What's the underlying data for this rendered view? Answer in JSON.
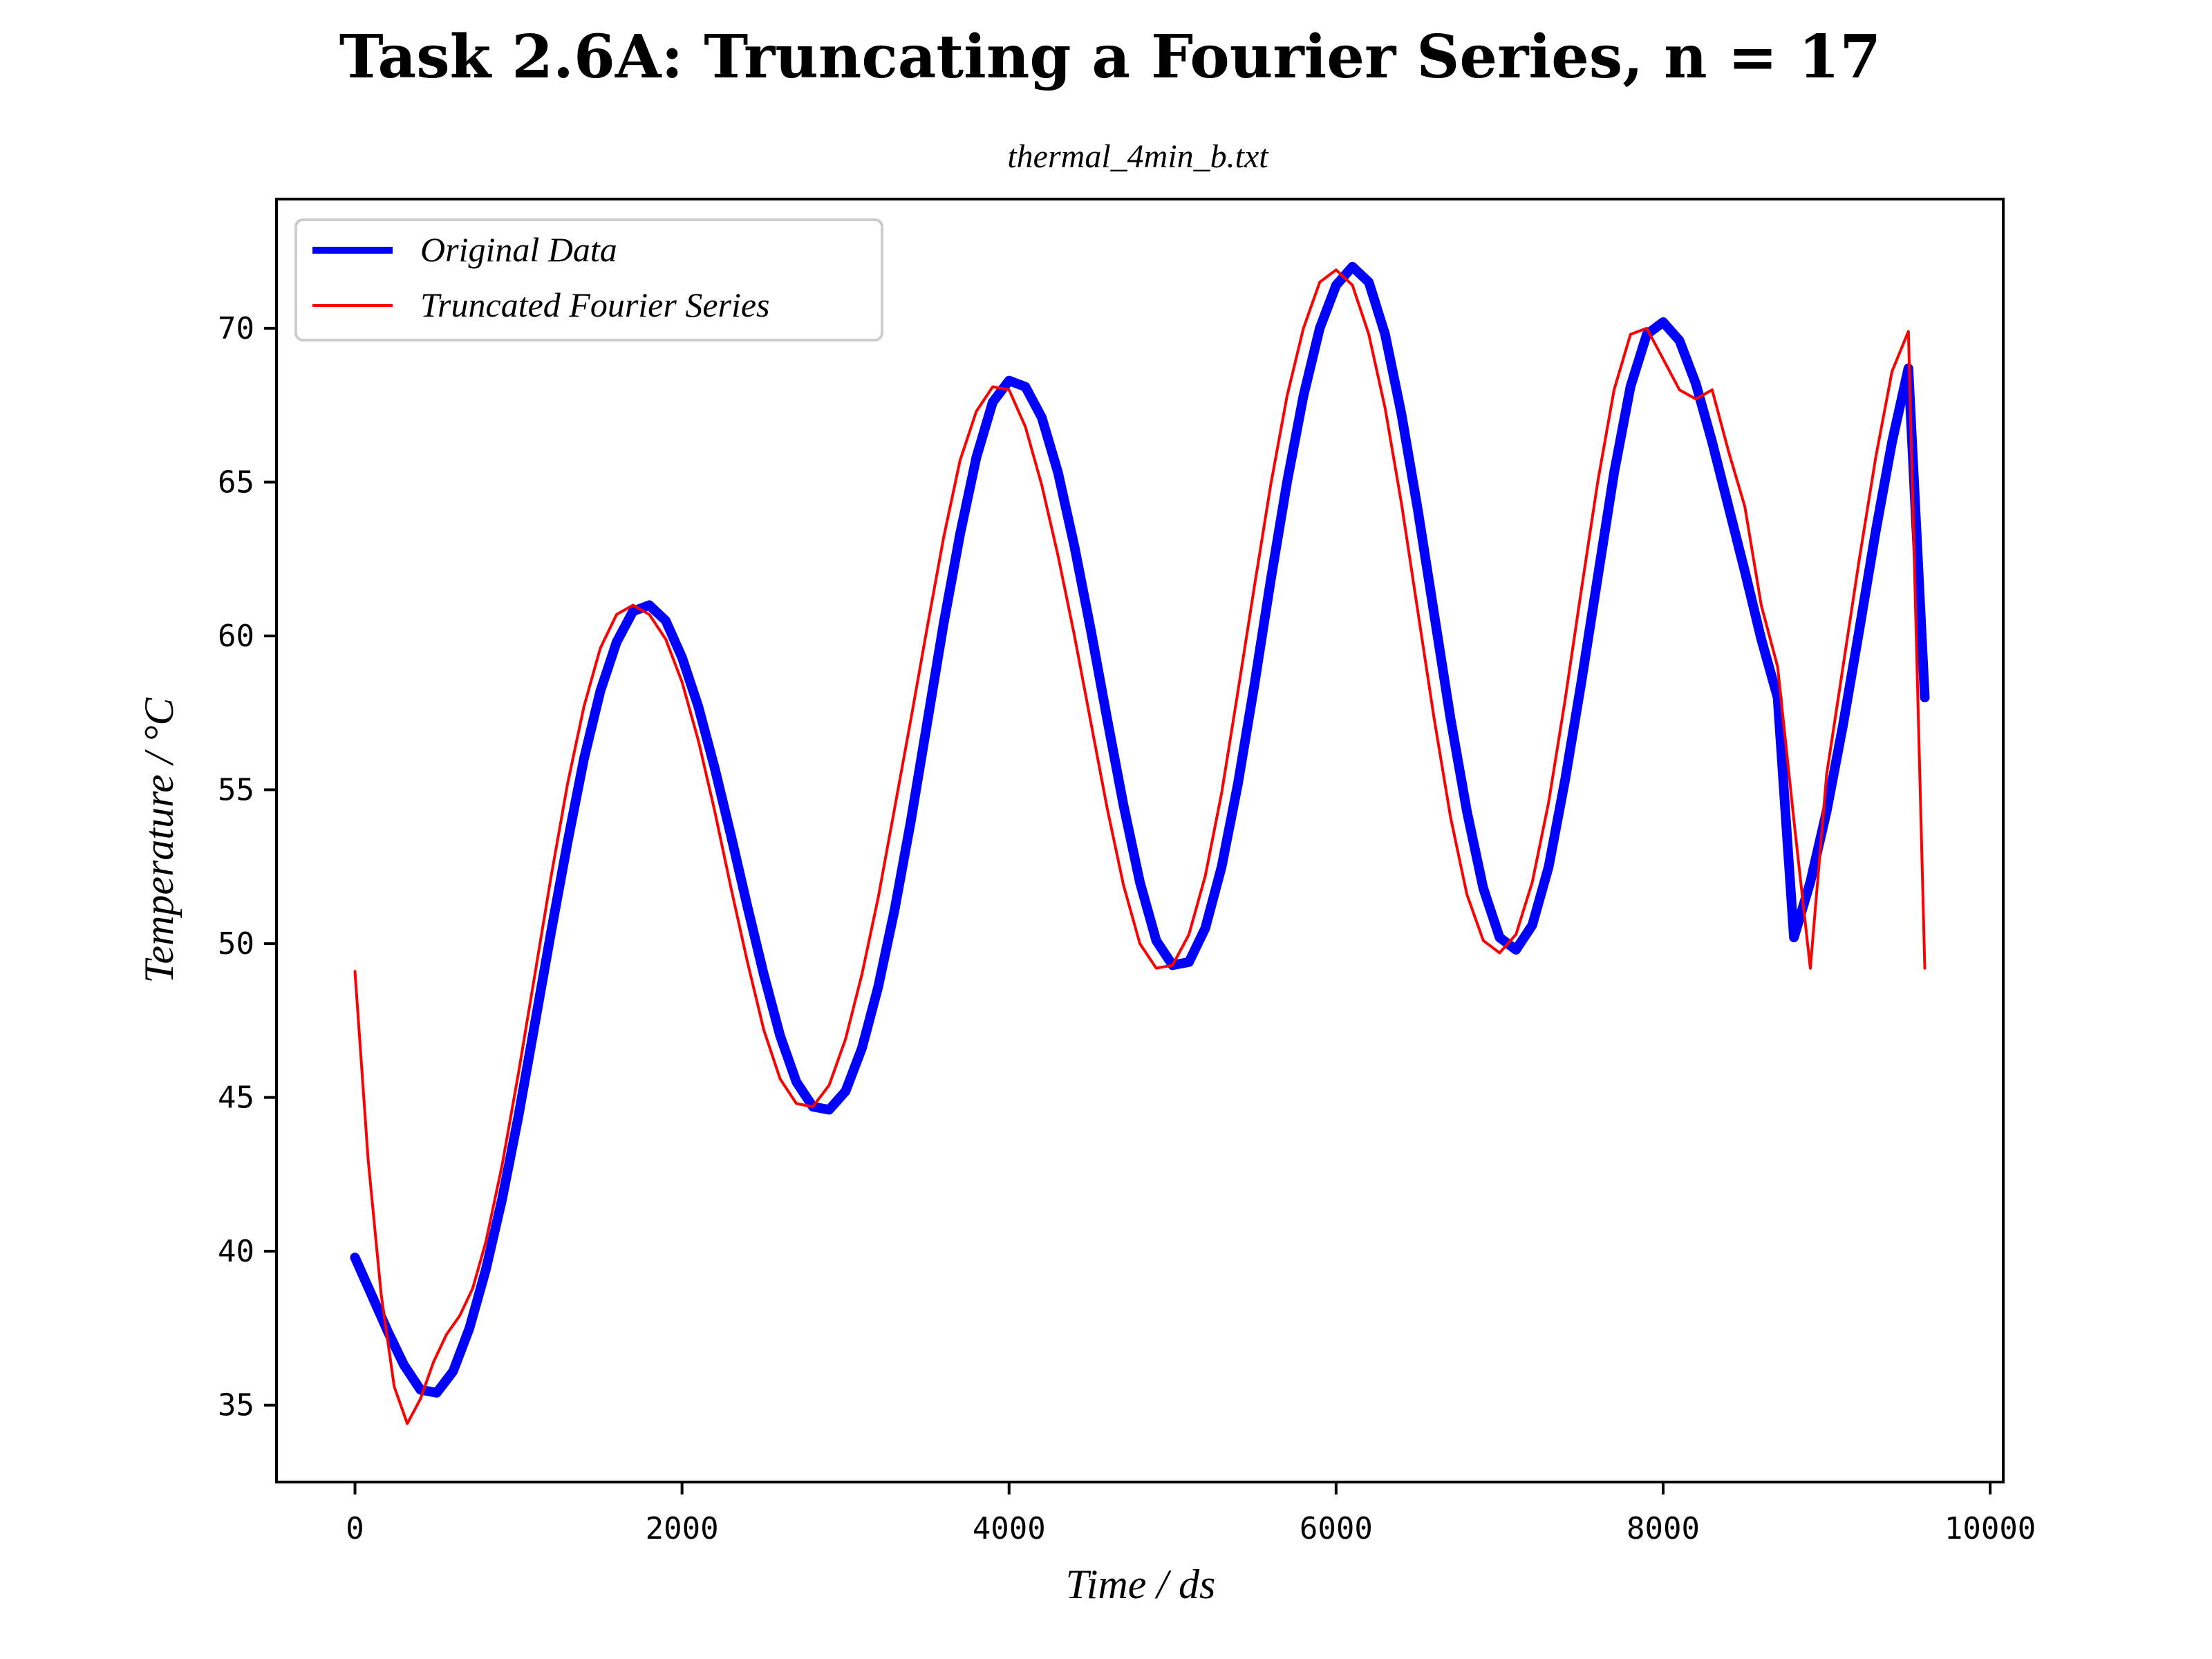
{
  "chart_data": {
    "type": "line",
    "title": "Task 2.6A: Truncating a Fourier Series, n = 17",
    "subtitle": "thermal_4min_b.txt",
    "xlabel": "Time / ds",
    "ylabel": "Temperature / °C",
    "xlim": [
      -480,
      10080
    ],
    "ylim": [
      32.5,
      74.2
    ],
    "xticks": [
      0,
      2000,
      4000,
      6000,
      8000,
      10000
    ],
    "xtick_labels": [
      "0",
      "2000",
      "4000",
      "6000",
      "8000",
      "10000"
    ],
    "yticks": [
      35,
      40,
      45,
      50,
      55,
      60,
      65,
      70
    ],
    "ytick_labels": [
      "35",
      "40",
      "45",
      "50",
      "55",
      "60",
      "65",
      "70"
    ],
    "grid": false,
    "legend_position": "upper-left",
    "series": [
      {
        "name": "Original Data",
        "color": "#0000ff",
        "x": [
          0,
          100,
          200,
          300,
          400,
          500,
          600,
          700,
          800,
          900,
          1000,
          1100,
          1200,
          1300,
          1400,
          1500,
          1600,
          1700,
          1800,
          1900,
          2000,
          2100,
          2200,
          2300,
          2400,
          2500,
          2600,
          2700,
          2800,
          2900,
          3000,
          3100,
          3200,
          3300,
          3400,
          3500,
          3600,
          3700,
          3800,
          3900,
          4000,
          4100,
          4200,
          4300,
          4400,
          4500,
          4600,
          4700,
          4800,
          4900,
          5000,
          5100,
          5200,
          5300,
          5400,
          5500,
          5600,
          5700,
          5800,
          5900,
          6000,
          6100,
          6200,
          6300,
          6400,
          6500,
          6600,
          6700,
          6800,
          6900,
          7000,
          7100,
          7200,
          7300,
          7400,
          7500,
          7600,
          7700,
          7800,
          7900,
          8000,
          8100,
          8200,
          8300,
          8400,
          8500,
          8600,
          8700,
          8800,
          8900,
          9000,
          9100,
          9200,
          9300,
          9400,
          9500,
          9600
        ],
        "y": [
          39.8,
          38.6,
          37.4,
          36.3,
          35.5,
          35.4,
          36.1,
          37.5,
          39.4,
          41.7,
          44.4,
          47.4,
          50.4,
          53.3,
          56.0,
          58.2,
          59.8,
          60.8,
          61.0,
          60.5,
          59.3,
          57.7,
          55.7,
          53.5,
          51.2,
          49.0,
          47.0,
          45.5,
          44.7,
          44.6,
          45.2,
          46.6,
          48.6,
          51.1,
          54.0,
          57.2,
          60.4,
          63.3,
          65.8,
          67.6,
          68.3,
          68.1,
          67.1,
          65.3,
          62.9,
          60.2,
          57.3,
          54.5,
          52.0,
          50.1,
          49.3,
          49.4,
          50.5,
          52.5,
          55.2,
          58.4,
          61.8,
          65.0,
          67.8,
          70.0,
          71.4,
          72.0,
          71.5,
          69.8,
          67.2,
          64.1,
          60.7,
          57.3,
          54.3,
          51.8,
          50.2,
          49.8,
          50.6,
          52.5,
          55.3,
          58.5,
          61.9,
          65.3,
          68.1,
          69.8,
          70.2,
          69.6,
          68.2,
          66.3,
          64.2,
          62.1,
          59.9,
          58.0,
          50.2,
          52.0,
          54.3,
          57.1,
          60.2,
          63.4,
          66.3,
          68.7,
          58.0
        ]
      },
      {
        "name": "Truncated Fourier Series",
        "color": "#ff0000",
        "x": [
          0,
          80,
          160,
          240,
          320,
          400,
          480,
          560,
          640,
          720,
          800,
          900,
          1000,
          1100,
          1200,
          1300,
          1400,
          1500,
          1600,
          1700,
          1800,
          1900,
          2000,
          2100,
          2200,
          2300,
          2400,
          2500,
          2600,
          2700,
          2800,
          2900,
          3000,
          3100,
          3200,
          3300,
          3400,
          3500,
          3600,
          3700,
          3800,
          3900,
          4000,
          4100,
          4200,
          4300,
          4400,
          4500,
          4600,
          4700,
          4800,
          4900,
          5000,
          5100,
          5200,
          5300,
          5400,
          5500,
          5600,
          5700,
          5800,
          5900,
          6000,
          6100,
          6200,
          6300,
          6400,
          6500,
          6600,
          6700,
          6800,
          6900,
          7000,
          7100,
          7200,
          7300,
          7400,
          7500,
          7600,
          7700,
          7800,
          7900,
          8000,
          8100,
          8200,
          8300,
          8400,
          8500,
          8600,
          8700,
          8800,
          8900,
          9000,
          9100,
          9200,
          9300,
          9400,
          9500,
          9600
        ],
        "y": [
          49.1,
          43.0,
          38.6,
          35.6,
          34.4,
          35.2,
          36.4,
          37.3,
          37.9,
          38.8,
          40.3,
          42.8,
          45.8,
          49.0,
          52.2,
          55.2,
          57.7,
          59.6,
          60.7,
          61.0,
          60.7,
          59.9,
          58.5,
          56.6,
          54.3,
          51.8,
          49.4,
          47.2,
          45.6,
          44.8,
          44.7,
          45.4,
          46.9,
          49.0,
          51.5,
          54.4,
          57.3,
          60.3,
          63.2,
          65.7,
          67.3,
          68.1,
          68.0,
          66.8,
          64.9,
          62.6,
          60.0,
          57.2,
          54.4,
          51.9,
          50.0,
          49.2,
          49.3,
          50.3,
          52.2,
          54.9,
          58.2,
          61.6,
          64.9,
          67.8,
          70.0,
          71.5,
          71.9,
          71.4,
          69.8,
          67.4,
          64.3,
          60.8,
          57.3,
          54.1,
          51.6,
          50.1,
          49.7,
          50.3,
          52.0,
          54.6,
          57.9,
          61.5,
          65.0,
          68.0,
          69.8,
          70.0,
          69.0,
          68.0,
          67.7,
          68.0,
          66.0,
          64.2,
          61.0,
          59.0,
          54.0,
          49.2,
          55.5,
          59.0,
          62.5,
          65.8,
          68.6,
          69.9,
          49.2
        ]
      }
    ]
  }
}
